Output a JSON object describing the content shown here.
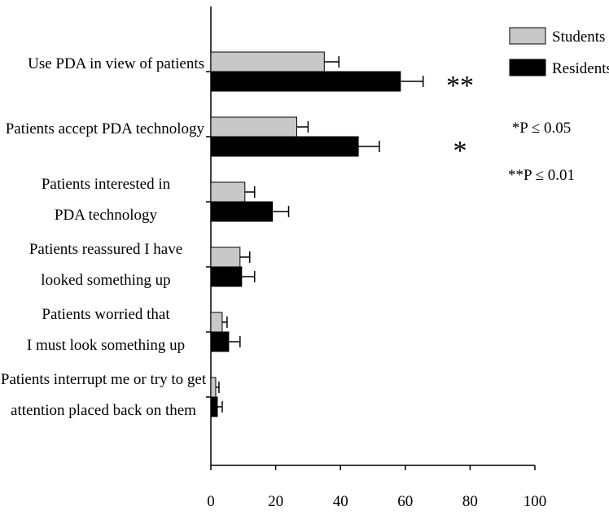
{
  "chart_data": {
    "type": "bar",
    "orientation": "horizontal",
    "categories": [
      [
        "Use PDA in view of patients"
      ],
      [
        "Patients accept PDA technology"
      ],
      [
        "Patients interested in",
        "PDA technology"
      ],
      [
        "Patients reassured I have",
        "looked something up"
      ],
      [
        "Patients worried that",
        "I must look something up"
      ],
      [
        "Patients interrupt me or try to get",
        "attention placed back on them"
      ]
    ],
    "series": [
      {
        "name": "Students",
        "color": "#c8c8c8",
        "values": [
          35,
          26.5,
          10.5,
          9,
          3.5,
          1.5
        ],
        "errors": [
          4.5,
          3.5,
          3,
          3,
          1.5,
          1
        ]
      },
      {
        "name": "Residents",
        "color": "#000000",
        "values": [
          58.5,
          45.5,
          19,
          9.5,
          5.5,
          2
        ],
        "errors": [
          7,
          6.5,
          5,
          4,
          3.5,
          1.5
        ]
      }
    ],
    "significance": [
      "**",
      "*",
      "",
      "",
      "",
      ""
    ],
    "xlim": [
      0,
      100
    ],
    "xticks": [
      "0",
      "20",
      "40",
      "60",
      "80",
      "100"
    ],
    "legend_position": "top-right",
    "notes": [
      "*P  ≤ 0.05",
      "**P  ≤ 0.01"
    ],
    "grid": false
  }
}
